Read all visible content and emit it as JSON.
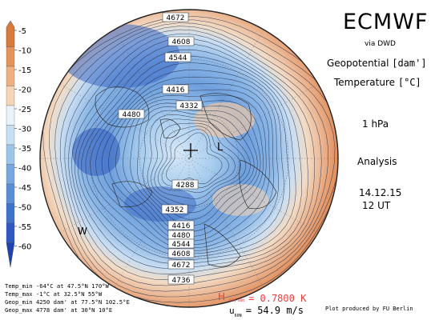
{
  "header": {
    "model": "ECMWF",
    "source": "via DWD",
    "field1_name": "Geopotential",
    "field1_unit": "[dam']",
    "field2_name": "Temperature",
    "field2_unit": "[°C]",
    "level": "1 hPa",
    "type": "Analysis",
    "date": "14.12.15",
    "time": "12 UT"
  },
  "colorbar": {
    "labels": [
      "-5",
      "-10",
      "-15",
      "-20",
      "-25",
      "-30",
      "-35",
      "-40",
      "-45",
      "-50",
      "-55",
      "-60"
    ],
    "colors": [
      "#d9793a",
      "#e4935a",
      "#eeb184",
      "#f6d5b6",
      "#eaf3fb",
      "#c7dff3",
      "#9cc5ea",
      "#76a8df",
      "#5a8ed6",
      "#3f72cb",
      "#2e58c0",
      "#1f42b2"
    ]
  },
  "map": {
    "contour_labels": [
      "4672",
      "4608",
      "4544",
      "4416",
      "4332",
      "4480",
      "4288",
      "4352",
      "4416",
      "4480",
      "4544",
      "4608",
      "4672",
      "4736"
    ],
    "high_marker": "H",
    "low_marker": "L",
    "west_marker": "W"
  },
  "stats": {
    "temp_min": "Temp_min  -64°C at 47.5°N 170°W",
    "temp_max": "Temp_max  -1°C at 32.5°N 55°W",
    "geop_min": "Geop_min 4250 dam' at 77.5°N 102.5°E",
    "geop_max": "Geop_max 4778 dam' at 30°N 10°E"
  },
  "footer": {
    "gradient_label": "60N-80N",
    "gradient_value": "= 0.7800 K",
    "wind_label": "u",
    "wind_sub": "60N",
    "wind_value": "= 54.9 m/s",
    "credit": "Plot produced by FU Berlin"
  }
}
